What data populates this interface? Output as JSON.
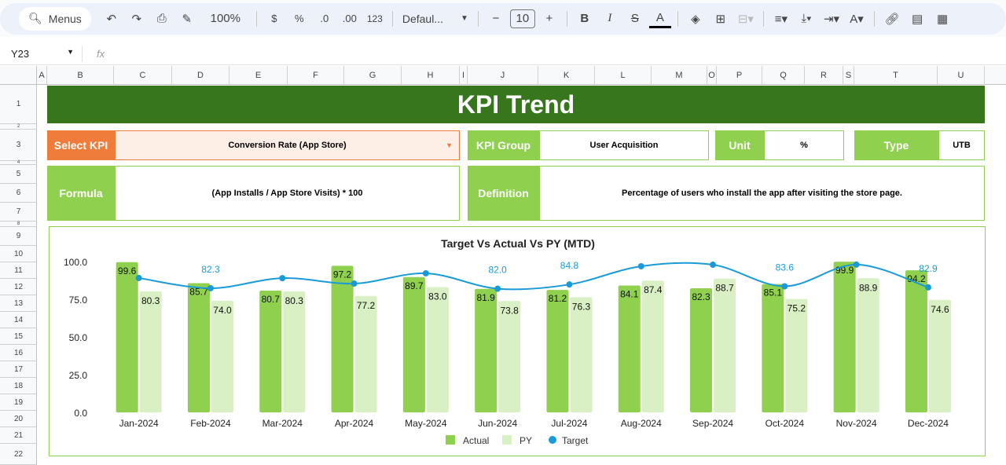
{
  "toolbar": {
    "menus": "Menus",
    "zoom": "100%",
    "currency": "$",
    "percent": "%",
    "dec_decrease": ".0",
    "dec_increase": ".00",
    "format_123": "123",
    "font": "Defaul...",
    "font_size": "10",
    "bold": "B",
    "italic": "I",
    "text_color": "A"
  },
  "formula_bar": {
    "cell_ref": "Y23",
    "fx": "fx",
    "value": ""
  },
  "columns": [
    "A",
    "B",
    "C",
    "D",
    "E",
    "F",
    "G",
    "H",
    "I",
    "J",
    "K",
    "L",
    "M",
    "O",
    "P",
    "Q",
    "R",
    "S",
    "T",
    "U"
  ],
  "rows": [
    "1",
    "2",
    "3",
    "4",
    "5",
    "6",
    "7",
    "8",
    "9",
    "10",
    "11",
    "12",
    "13",
    "14",
    "15",
    "16",
    "17",
    "18",
    "19",
    "20",
    "21",
    "22"
  ],
  "sheet": {
    "title": "KPI Trend",
    "select_kpi_label": "Select KPI",
    "select_kpi_value": "Conversion Rate (App Store)",
    "kpi_group_label": "KPI Group",
    "kpi_group_value": "User Acquisition",
    "unit_label": "Unit",
    "unit_value": "%",
    "type_label": "Type",
    "type_value": "UTB",
    "formula_label": "Formula",
    "formula_value": "(App Installs / App Store Visits) * 100",
    "definition_label": "Definition",
    "definition_value": "Percentage of users who install the app after visiting the store page."
  },
  "colors": {
    "title_bg": "#38761d",
    "accent_green": "#8fd14f",
    "select_orange": "#f07c3b",
    "py_green": "#d9efc4",
    "target_blue": "#1a9bd7"
  },
  "chart_data": {
    "type": "bar",
    "title": "Target Vs Actual Vs PY (MTD)",
    "categories": [
      "Jan-2024",
      "Feb-2024",
      "Mar-2024",
      "Apr-2024",
      "May-2024",
      "Jun-2024",
      "Jul-2024",
      "Aug-2024",
      "Sep-2024",
      "Oct-2024",
      "Nov-2024",
      "Dec-2024"
    ],
    "ylim": [
      0,
      100
    ],
    "yticks": [
      "0.0",
      "25.0",
      "50.0",
      "75.0",
      "100.0"
    ],
    "series": [
      {
        "name": "Actual",
        "type": "bar",
        "values": [
          99.6,
          85.7,
          80.7,
          97.2,
          89.7,
          81.9,
          81.2,
          84.1,
          82.3,
          85.1,
          99.9,
          94.2
        ]
      },
      {
        "name": "PY",
        "type": "bar",
        "values": [
          80.3,
          74.0,
          80.3,
          77.2,
          83.0,
          73.8,
          76.3,
          87.4,
          88.7,
          75.2,
          88.9,
          74.6
        ]
      },
      {
        "name": "Target",
        "type": "line",
        "values": [
          89.1,
          82.3,
          89.0,
          85.4,
          92.2,
          82.0,
          84.8,
          96.9,
          97.9,
          83.6,
          98.0,
          82.9
        ],
        "labeled": [
          false,
          true,
          false,
          false,
          false,
          true,
          true,
          false,
          false,
          true,
          false,
          true
        ]
      }
    ],
    "legend": "bottom"
  }
}
